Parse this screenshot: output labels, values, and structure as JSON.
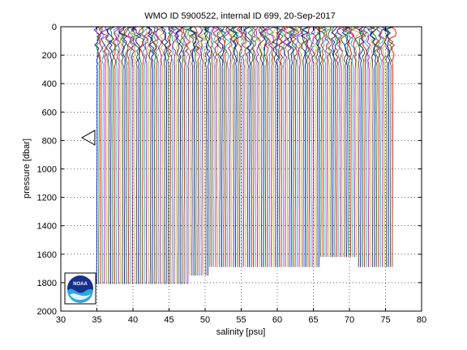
{
  "chart_data": {
    "type": "line",
    "title": "WMO ID 5900522, internal ID 699, 20-Sep-2017",
    "xlabel": "salinity [psu]",
    "ylabel": "pressure [dbar]",
    "xlim": [
      30,
      80
    ],
    "ylim": [
      2000,
      0
    ],
    "y_reversed": true,
    "grid": true,
    "xticks": [
      "30",
      "35",
      "40",
      "45",
      "50",
      "55",
      "60",
      "65",
      "70",
      "75",
      "80"
    ],
    "yticks": [
      "0",
      "200",
      "400",
      "600",
      "800",
      "1000",
      "1200",
      "1400",
      "1600",
      "1800",
      "2000"
    ],
    "profile_count": 150,
    "profile_offset_step": 0.275,
    "base_salinity_first_profile": 34.7,
    "bottom_pressure_segments": [
      {
        "from_profile": 0,
        "to_profile": 47,
        "bottom_pressure": 1810
      },
      {
        "from_profile": 47,
        "to_profile": 57,
        "bottom_pressure": 1750
      },
      {
        "from_profile": 57,
        "to_profile": 113,
        "bottom_pressure": 1690
      },
      {
        "from_profile": 113,
        "to_profile": 132,
        "bottom_pressure": 1620
      },
      {
        "from_profile": 132,
        "to_profile": 150,
        "bottom_pressure": 1690
      }
    ],
    "line_colors": [
      "#0000ff",
      "#008000",
      "#ff0000",
      "#00bfbf",
      "#bf00bf",
      "#bfbf00",
      "#404040"
    ],
    "marker": {
      "shape": "triangle-left",
      "pressure": 780
    }
  },
  "logo": {
    "label": "NOAA"
  }
}
